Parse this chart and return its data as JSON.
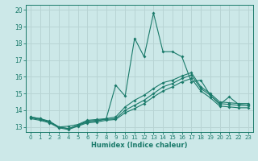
{
  "title": "",
  "xlabel": "Humidex (Indice chaleur)",
  "xlim": [
    -0.5,
    23.5
  ],
  "ylim": [
    12.7,
    20.3
  ],
  "yticks": [
    13,
    14,
    15,
    16,
    17,
    18,
    19,
    20
  ],
  "xticks": [
    0,
    1,
    2,
    3,
    4,
    5,
    6,
    7,
    8,
    9,
    10,
    11,
    12,
    13,
    14,
    15,
    16,
    17,
    18,
    19,
    20,
    21,
    22,
    23
  ],
  "bg_color": "#cce8e8",
  "grid_color": "#b8d4d4",
  "line_color": "#1a7a6a",
  "line1_x": [
    0,
    1,
    2,
    3,
    4,
    5,
    6,
    7,
    8,
    9,
    10,
    11,
    12,
    13,
    14,
    15,
    16,
    17,
    18,
    19,
    20,
    21,
    22,
    23
  ],
  "line1_y": [
    13.6,
    13.5,
    13.3,
    13.0,
    12.9,
    13.1,
    13.3,
    13.35,
    13.5,
    15.5,
    14.85,
    18.3,
    17.2,
    19.8,
    17.5,
    17.5,
    17.2,
    15.7,
    15.8,
    14.9,
    14.35,
    14.8,
    14.35,
    14.3
  ],
  "line2_x": [
    0,
    1,
    2,
    3,
    4,
    5,
    6,
    7,
    8,
    9,
    10,
    11,
    12,
    13,
    14,
    15,
    16,
    17,
    18,
    19,
    20,
    21,
    22,
    23
  ],
  "line2_y": [
    13.6,
    13.5,
    13.35,
    13.0,
    13.05,
    13.15,
    13.4,
    13.45,
    13.5,
    13.6,
    14.2,
    14.6,
    14.9,
    15.3,
    15.65,
    15.8,
    16.05,
    16.25,
    15.4,
    15.0,
    14.5,
    14.45,
    14.4,
    14.4
  ],
  "line3_x": [
    0,
    1,
    2,
    3,
    4,
    5,
    6,
    7,
    8,
    9,
    10,
    11,
    12,
    13,
    14,
    15,
    16,
    17,
    18,
    19,
    20,
    21,
    22,
    23
  ],
  "line3_y": [
    13.55,
    13.45,
    13.3,
    13.0,
    12.9,
    13.1,
    13.35,
    13.4,
    13.45,
    13.5,
    14.0,
    14.3,
    14.6,
    15.0,
    15.4,
    15.6,
    15.9,
    16.1,
    15.3,
    14.9,
    14.4,
    14.35,
    14.3,
    14.3
  ],
  "line4_x": [
    0,
    1,
    2,
    3,
    4,
    5,
    6,
    7,
    8,
    9,
    10,
    11,
    12,
    13,
    14,
    15,
    16,
    17,
    18,
    19,
    20,
    21,
    22,
    23
  ],
  "line4_y": [
    13.5,
    13.4,
    13.25,
    12.95,
    12.85,
    13.05,
    13.25,
    13.3,
    13.4,
    13.45,
    13.85,
    14.1,
    14.4,
    14.8,
    15.15,
    15.4,
    15.7,
    15.9,
    15.15,
    14.75,
    14.25,
    14.2,
    14.15,
    14.15
  ]
}
